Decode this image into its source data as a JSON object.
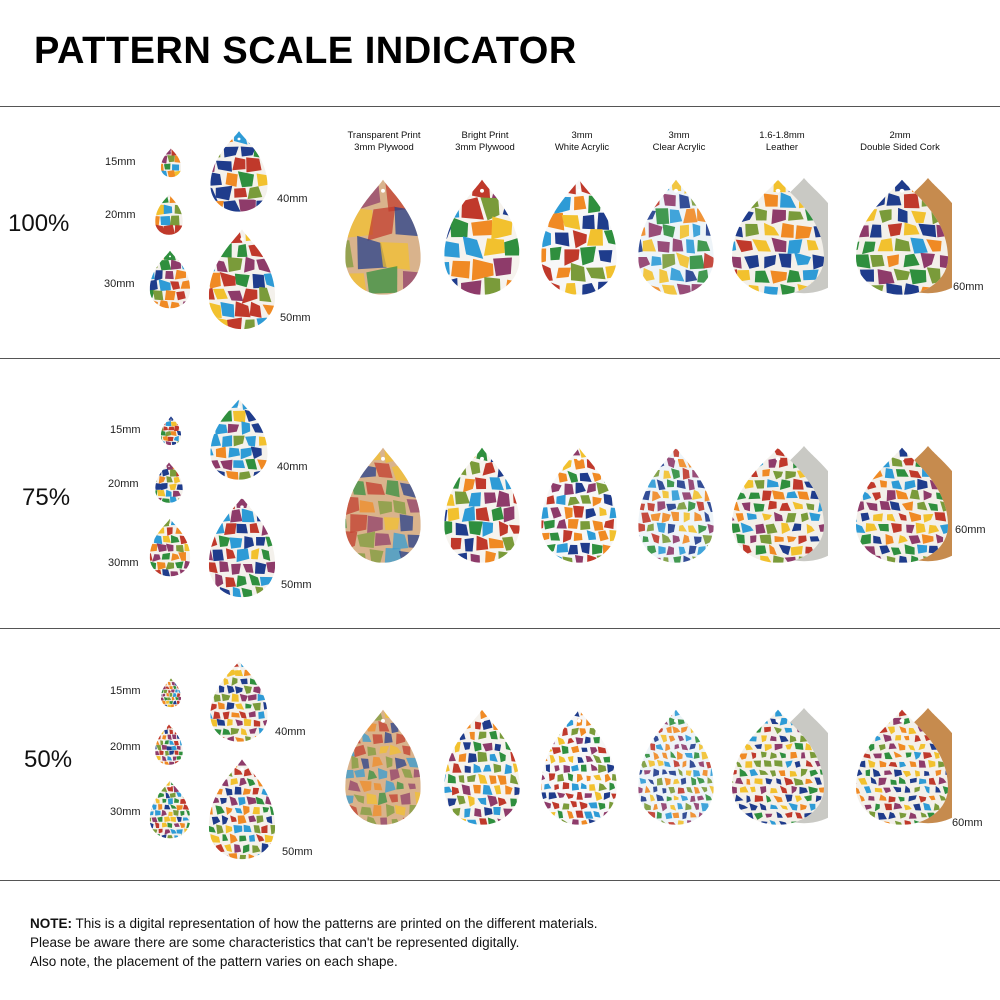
{
  "title": "PATTERN SCALE INDICATOR",
  "materials": [
    {
      "line1": "Transparent Print",
      "line2": "3mm Plywood"
    },
    {
      "line1": "Bright Print",
      "line2": "3mm Plywood"
    },
    {
      "line1": "3mm",
      "line2": "White Acrylic"
    },
    {
      "line1": "3mm",
      "line2": "Clear Acrylic"
    },
    {
      "line1": "1.6-1.8mm",
      "line2": "Leather"
    },
    {
      "line1": "2mm",
      "line2": "Double Sided Cork"
    }
  ],
  "rows": [
    {
      "percent": "100%",
      "s15": "15mm",
      "s20": "20mm",
      "s30": "30mm",
      "s40": "40mm",
      "s50": "50mm",
      "s60": "60mm"
    },
    {
      "percent": "75%",
      "s15": "15mm",
      "s20": "20mm",
      "s30": "30mm",
      "s40": "40mm",
      "s50": "50mm",
      "s60": "60mm"
    },
    {
      "percent": "50%",
      "s15": "15mm",
      "s20": "20mm",
      "s30": "30mm",
      "s40": "40mm",
      "s50": "50mm",
      "s60": "60mm"
    }
  ],
  "note": {
    "label": "NOTE:",
    "line1": " This is a digital representation of how the patterns are printed on the different materials.",
    "line2": "Please be aware there are some characteristics that can't be represented digitally.",
    "line3": "Also note, the placement of the pattern varies on each shape."
  },
  "colors": {
    "mosaic": [
      "#2e9bd6",
      "#c0392b",
      "#2f8f3e",
      "#f08a24",
      "#8e3b6a",
      "#f2c12e",
      "#1f3c8c",
      "#7a9b3a"
    ],
    "plywood": "#d9b38c",
    "leather_back": "#c9c9c4",
    "cork_back": "#c68b4e",
    "rule": "#555555"
  }
}
